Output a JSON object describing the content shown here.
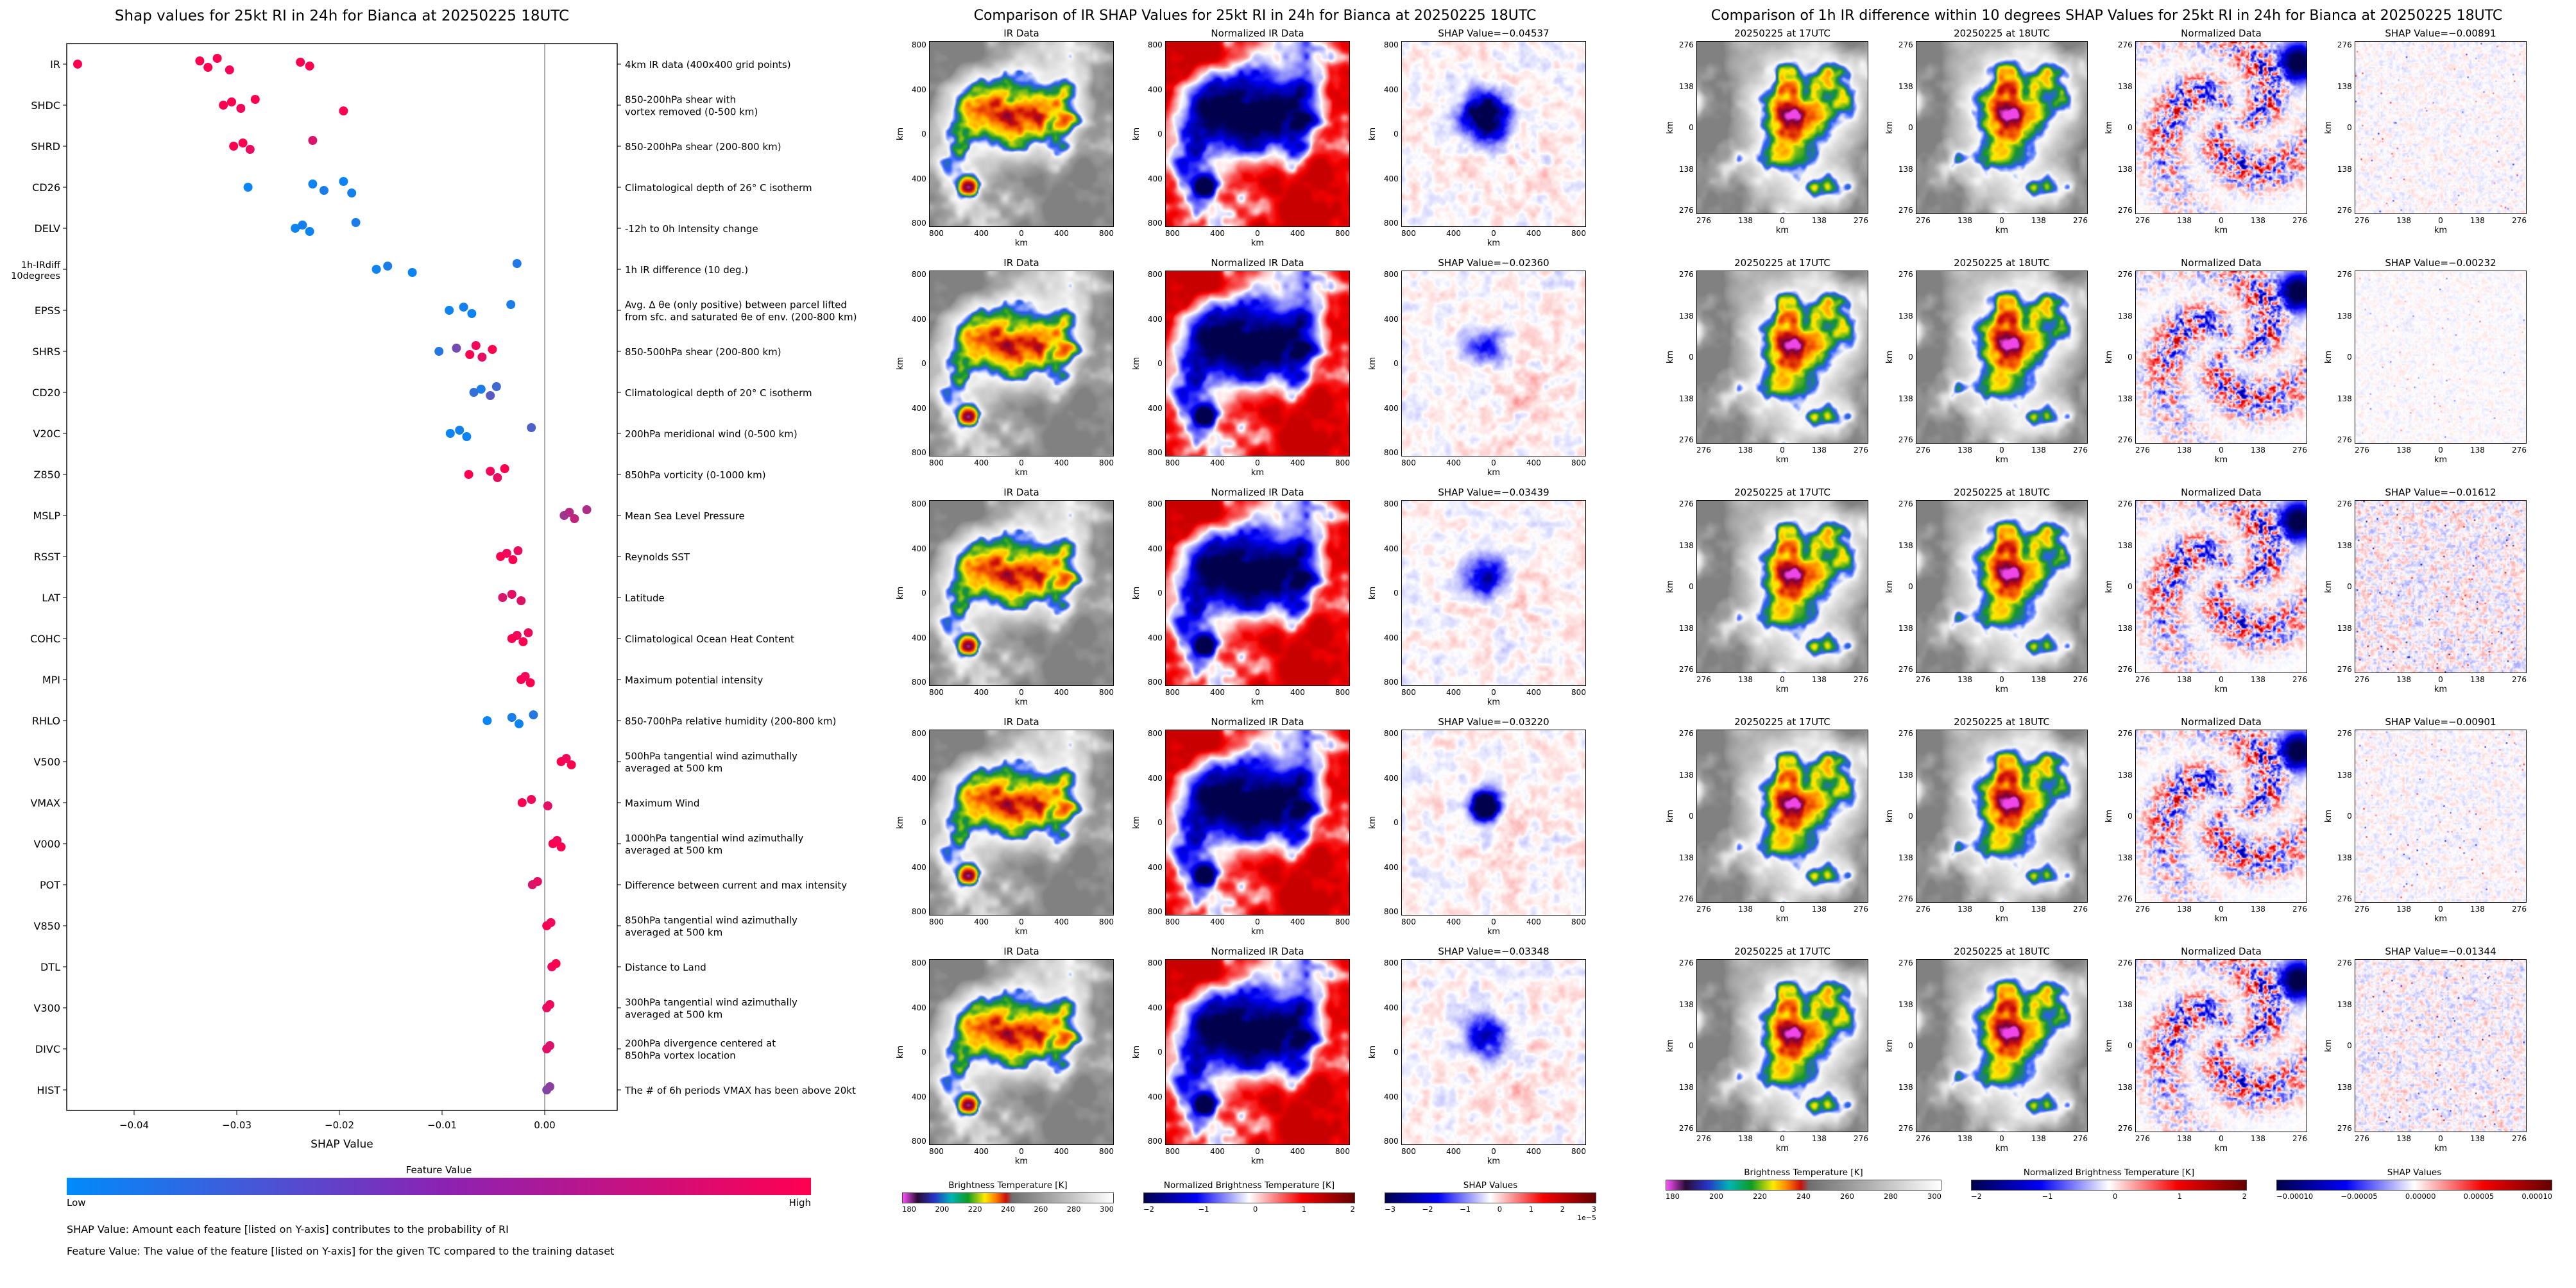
{
  "figure": {
    "background": "#ffffff"
  },
  "gradients": {
    "irbar": [
      [
        "#ff50ff",
        0
      ],
      [
        "#2b0b34",
        7
      ],
      [
        "#2633c8",
        15
      ],
      [
        "#00b4b4",
        23
      ],
      [
        "#0f9b23",
        31
      ],
      [
        "#ffeb00",
        39
      ],
      [
        "#ff8200",
        44
      ],
      [
        "#cd0f0a",
        49
      ],
      [
        "#6e6e6e",
        52
      ],
      [
        "#ffffff",
        100
      ]
    ],
    "seismic": [
      [
        "#00004c",
        0
      ],
      [
        "#0000f5",
        25
      ],
      [
        "#ffffff",
        50
      ],
      [
        "#f50000",
        75
      ],
      [
        "#640000",
        100
      ]
    ]
  },
  "chart_data": [
    {
      "id": "beeswarm",
      "type": "scatter",
      "title": "Shap values for 25kt RI in 24h for Bianca at 20250225 18UTC",
      "xlabel": "SHAP Value",
      "xlim": [
        -0.048,
        0.0075
      ],
      "xticks": [
        -0.04,
        -0.03,
        -0.02,
        -0.01,
        0.0
      ],
      "xtick_labels": [
        "−0.04",
        "−0.03",
        "−0.02",
        "−0.01",
        "0.00"
      ],
      "zero_line": 0.0,
      "colorbar": {
        "title": "Feature Value",
        "low_label": "Low",
        "high_label": "High",
        "gradient": [
          "#008bfb",
          "#8a23b4",
          "#ff0051"
        ]
      },
      "footnotes": [
        "SHAP Value: Amount each feature [listed on Y-axis] contributes to the probability of RI",
        "Feature Value: The value of the feature [listed on Y-axis] for the given TC compared to the training dataset"
      ],
      "features": [
        {
          "name": "IR",
          "desc": "4km IR data (400x400 grid points)",
          "points": [
            [
              -0.0455,
              1
            ],
            [
              -0.0336,
              1
            ],
            [
              -0.0328,
              1
            ],
            [
              -0.0319,
              1
            ],
            [
              -0.0307,
              0.97
            ],
            [
              -0.0238,
              1
            ],
            [
              -0.0229,
              1
            ]
          ]
        },
        {
          "name": "SHDC",
          "desc": "850-200hPa shear with\nvortex removed (0-500 km)",
          "points": [
            [
              -0.0313,
              1
            ],
            [
              -0.0305,
              1
            ],
            [
              -0.0296,
              0.95
            ],
            [
              -0.0282,
              1
            ],
            [
              -0.0196,
              1
            ]
          ]
        },
        {
          "name": "SHRD",
          "desc": "850-200hPa shear (200-800 km)",
          "points": [
            [
              -0.0303,
              1
            ],
            [
              -0.0294,
              1
            ],
            [
              -0.0287,
              0.92
            ],
            [
              -0.0226,
              0.85
            ]
          ]
        },
        {
          "name": "CD26",
          "desc": "Climatological depth of 26° C isotherm",
          "points": [
            [
              -0.0289,
              0.05
            ],
            [
              -0.0226,
              0.06
            ],
            [
              -0.0215,
              0.1
            ],
            [
              -0.0196,
              0.05
            ],
            [
              -0.0188,
              0.08
            ]
          ]
        },
        {
          "name": "DELV",
          "desc": "-12h to 0h Intensity change",
          "points": [
            [
              -0.0243,
              0.05
            ],
            [
              -0.0236,
              0.08
            ],
            [
              -0.0229,
              0.05
            ],
            [
              -0.0184,
              0.1
            ]
          ]
        },
        {
          "name": "1h-IRdiff\n10degrees",
          "desc": "1h IR difference (10 deg.)",
          "points": [
            [
              -0.0164,
              0.06
            ],
            [
              -0.0153,
              0.1
            ],
            [
              -0.0129,
              0.05
            ],
            [
              -0.0027,
              0.12
            ]
          ]
        },
        {
          "name": "EPSS",
          "desc": "Avg. Δ θe (only positive) between parcel lifted\nfrom sfc. and saturated θe of env. (200-800 km)",
          "points": [
            [
              -0.0093,
              0.05
            ],
            [
              -0.0079,
              0.08
            ],
            [
              -0.0071,
              0.05
            ],
            [
              -0.0033,
              0.1
            ]
          ]
        },
        {
          "name": "SHRS",
          "desc": "850-500hPa shear (200-800 km)",
          "points": [
            [
              -0.0103,
              0.15
            ],
            [
              -0.0086,
              0.45
            ],
            [
              -0.0073,
              1
            ],
            [
              -0.0067,
              0.95
            ],
            [
              -0.0061,
              0.9
            ],
            [
              -0.0051,
              1
            ]
          ]
        },
        {
          "name": "CD20",
          "desc": "Climatological depth of 20° C isotherm",
          "points": [
            [
              -0.0069,
              0.2
            ],
            [
              -0.0062,
              0.1
            ],
            [
              -0.0053,
              0.35
            ],
            [
              -0.0047,
              0.25
            ]
          ]
        },
        {
          "name": "V20C",
          "desc": "200hPa meridional wind (0-500 km)",
          "points": [
            [
              -0.0092,
              0.05
            ],
            [
              -0.0083,
              0.08
            ],
            [
              -0.0076,
              0.05
            ],
            [
              -0.0013,
              0.3
            ]
          ]
        },
        {
          "name": "Z850",
          "desc": "850hPa vorticity (0-1000 km)",
          "points": [
            [
              -0.0074,
              1
            ],
            [
              -0.0053,
              0.95
            ],
            [
              -0.0046,
              0.9
            ],
            [
              -0.0039,
              1
            ]
          ]
        },
        {
          "name": "MSLP",
          "desc": "Mean Sea Level Pressure",
          "points": [
            [
              0.0019,
              0.62
            ],
            [
              0.0024,
              0.7
            ],
            [
              0.0029,
              0.75
            ],
            [
              0.0041,
              0.68
            ]
          ]
        },
        {
          "name": "RSST",
          "desc": "Reynolds SST",
          "points": [
            [
              -0.0043,
              1
            ],
            [
              -0.0037,
              0.95
            ],
            [
              -0.0031,
              1
            ],
            [
              -0.0026,
              0.92
            ]
          ]
        },
        {
          "name": "LAT",
          "desc": "Latitude",
          "points": [
            [
              -0.0041,
              0.85
            ],
            [
              -0.0032,
              0.9
            ],
            [
              -0.0023,
              0.88
            ]
          ]
        },
        {
          "name": "COHC",
          "desc": "Climatological Ocean Heat Content",
          "points": [
            [
              -0.0032,
              1
            ],
            [
              -0.0027,
              0.95
            ],
            [
              -0.0021,
              1
            ],
            [
              -0.0016,
              0.93
            ]
          ]
        },
        {
          "name": "MPI",
          "desc": "Maximum potential intensity",
          "points": [
            [
              -0.0023,
              1
            ],
            [
              -0.0019,
              0.96
            ],
            [
              -0.0014,
              1
            ]
          ]
        },
        {
          "name": "RHLO",
          "desc": "850-700hPa relative humidity (200-800 km)",
          "points": [
            [
              -0.0056,
              0.05
            ],
            [
              -0.0032,
              0.1
            ],
            [
              -0.0025,
              0.06
            ],
            [
              -0.0011,
              0.15
            ]
          ]
        },
        {
          "name": "V500",
          "desc": "500hPa tangential wind azimuthally\naveraged at 500 km",
          "points": [
            [
              0.0016,
              1
            ],
            [
              0.0021,
              0.95
            ],
            [
              0.0026,
              1
            ]
          ]
        },
        {
          "name": "VMAX",
          "desc": "Maximum Wind",
          "points": [
            [
              -0.0022,
              1
            ],
            [
              -0.0013,
              0.95
            ],
            [
              0.0003,
              0.9
            ]
          ]
        },
        {
          "name": "V000",
          "desc": "1000hPa tangential wind azimuthally\naveraged at 500 km",
          "points": [
            [
              0.0008,
              1
            ],
            [
              0.0012,
              0.96
            ],
            [
              0.0016,
              1
            ]
          ]
        },
        {
          "name": "POT",
          "desc": "Difference between current and max intensity",
          "points": [
            [
              -0.0012,
              0.85
            ],
            [
              -0.0007,
              0.9
            ]
          ]
        },
        {
          "name": "V850",
          "desc": "850hPa tangential wind azimuthally\naveraged at 500 km",
          "points": [
            [
              0.0002,
              1
            ],
            [
              0.0006,
              0.95
            ]
          ]
        },
        {
          "name": "DTL",
          "desc": "Distance to Land",
          "points": [
            [
              0.0007,
              0.95
            ],
            [
              0.0011,
              1
            ]
          ]
        },
        {
          "name": "V300",
          "desc": "300hPa tangential wind azimuthally\naveraged at 500 km",
          "points": [
            [
              0.0002,
              0.9
            ],
            [
              0.0005,
              0.94
            ]
          ]
        },
        {
          "name": "DIVC",
          "desc": "200hPa divergence centered at\n850hPa vortex location",
          "points": [
            [
              0.0002,
              0.9
            ],
            [
              0.0005,
              0.86
            ]
          ]
        },
        {
          "name": "HIST",
          "desc": "The # of 6h periods VMAX has been above 20kt",
          "points": [
            [
              0.0002,
              0.5
            ],
            [
              0.0005,
              0.55
            ]
          ]
        }
      ]
    },
    {
      "id": "ir_panel",
      "type": "heatmap",
      "title": "Comparison of IR SHAP Values for 25kt RI in 24h for Bianca at 20250225 18UTC",
      "col_titles": [
        "IR Data",
        "Normalized IR Data"
      ],
      "shap_label_prefix": "SHAP Value=",
      "row_shap_values": [
        -0.04537,
        -0.0236,
        -0.03439,
        -0.0322,
        -0.03348
      ],
      "img_types": [
        "ir",
        "norm_ir",
        "shap_map"
      ],
      "axis_ticks": [
        "800",
        "400",
        "0",
        "400",
        "800"
      ],
      "axis_label": "km",
      "colorbars": [
        {
          "title": "Brightness Temperature [K]",
          "ticks": [
            "180",
            "200",
            "220",
            "240",
            "260",
            "280",
            "300"
          ],
          "gradient_id": "irbar"
        },
        {
          "title": "Normalized Brightness Temperature [K]",
          "ticks": [
            "−2",
            "−1",
            "0",
            "1",
            "2"
          ],
          "gradient_id": "seismic"
        },
        {
          "title": "SHAP Values",
          "ticks": [
            "−3",
            "−2",
            "−1",
            "0",
            "1",
            "2",
            "3"
          ],
          "scale_note": "1e−5",
          "gradient_id": "seismic"
        }
      ]
    },
    {
      "id": "irdiff_panel",
      "type": "heatmap",
      "title": "Comparison of 1h IR difference within 10 degrees SHAP Values for 25kt RI in 24h for Bianca at 20250225 18UTC",
      "col_titles": [
        "20250225 at 17UTC",
        "20250225 at 18UTC",
        "Normalized Data"
      ],
      "shap_label_prefix": "SHAP Value=",
      "row_shap_values": [
        -0.00891,
        -0.00232,
        -0.01612,
        -0.00901,
        -0.01344
      ],
      "img_types": [
        "gray_ir",
        "gray_ir2",
        "norm_diff",
        "shap_small"
      ],
      "axis_ticks": [
        "276",
        "138",
        "0",
        "138",
        "276"
      ],
      "axis_label": "km",
      "colorbars": [
        {
          "title": "Brightness Temperature [K]",
          "ticks": [
            "180",
            "200",
            "220",
            "240",
            "260",
            "280",
            "300"
          ],
          "gradient_id": "irbar"
        },
        {
          "title": "Normalized Brightness Temperature [K]",
          "ticks": [
            "−2",
            "−1",
            "0",
            "1",
            "2"
          ],
          "gradient_id": "seismic"
        },
        {
          "title": "SHAP Values",
          "ticks": [
            "−0.00010",
            "−0.00005",
            "0.00000",
            "0.00005",
            "0.00010"
          ],
          "gradient_id": "seismic"
        }
      ]
    }
  ]
}
